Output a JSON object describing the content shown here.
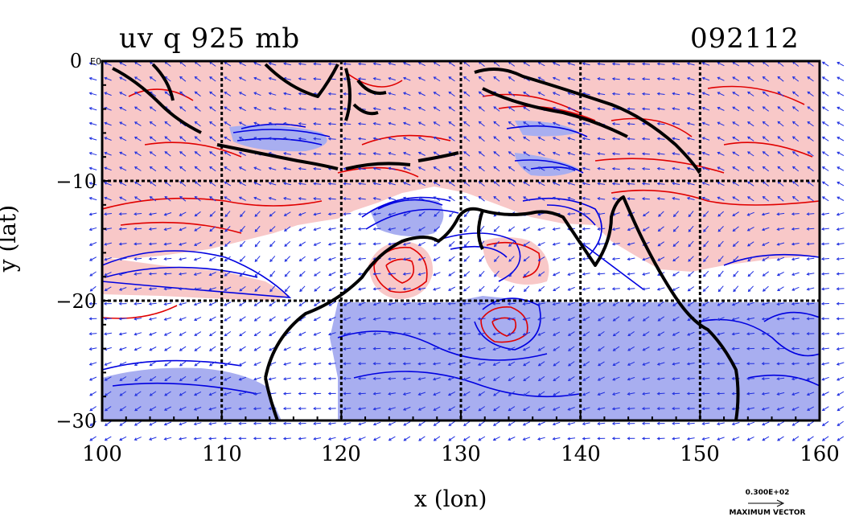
{
  "title_left": "uv q 925 mb",
  "title_right": "092112",
  "x_axis": {
    "label": "x (lon)",
    "range": [
      100,
      160
    ],
    "ticks": [
      "100",
      "110",
      "120",
      "130",
      "140",
      "150",
      "160"
    ]
  },
  "y_axis": {
    "label": "y (lat)",
    "range": [
      -30,
      0
    ],
    "ticks": [
      "0",
      "−10",
      "−20",
      "−30"
    ],
    "top_tick_suffix": "E0"
  },
  "legend": {
    "vector_value": "0.300E+02",
    "vector_label": "MAXIMUM VECTOR"
  },
  "colors": {
    "moist_fill": "#f8c8c8",
    "dry_fill": "#a8aef0",
    "moist_contour": "#e00000",
    "dry_contour": "#0000e0",
    "vector": "#2030e0",
    "coastline": "#000000"
  },
  "chart_data": {
    "type": "map",
    "variable": "uv q",
    "level": "925 mb",
    "xlim": [
      100,
      160
    ],
    "ylim": [
      -30,
      0
    ],
    "grid": true
  }
}
